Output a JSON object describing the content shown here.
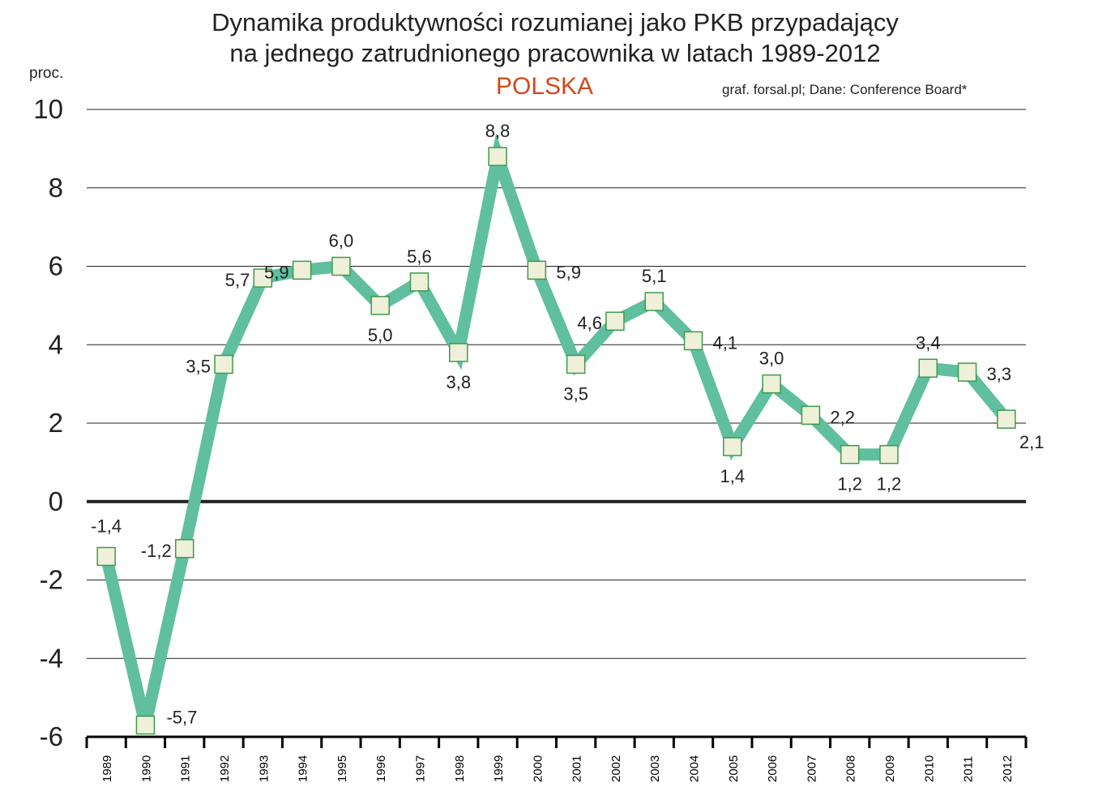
{
  "title_line1": "Dynamika produktywności rozumianej jako PKB przypadający",
  "title_line2": "na jednego zatrudnionego pracownika w latach 1989-2012",
  "subtitle": "POLSKA",
  "source": "graf. forsal.pl;  Dane: Conference Board*",
  "colors": {
    "line": "#5fbf9f",
    "marker_fill": "#eef0da",
    "marker_stroke": "#3f9a4a",
    "subtitle": "#d0491a",
    "grid": "#222222"
  },
  "chart_data": {
    "type": "line",
    "title": "Dynamika produktywności rozumianej jako PKB przypadający na jednego zatrudnionego pracownika w latach 1989-2012",
    "subtitle": "POLSKA",
    "ylabel": "proc.",
    "xlabel": "",
    "ylim": [
      -6,
      10
    ],
    "yticks": [
      10,
      8,
      6,
      4,
      2,
      0,
      -2,
      -4,
      -6
    ],
    "grid": true,
    "categories": [
      "1989",
      "1990",
      "1991",
      "1992",
      "1993",
      "1994",
      "1995",
      "1996",
      "1997",
      "1998",
      "1999",
      "2000",
      "2001",
      "2002",
      "2003",
      "2004",
      "2005",
      "2006",
      "2007",
      "2008",
      "2009",
      "2010",
      "2011",
      "2012"
    ],
    "values": [
      -1.4,
      -5.7,
      -1.2,
      3.5,
      5.7,
      5.9,
      6.0,
      5.0,
      5.6,
      3.8,
      8.8,
      5.9,
      3.5,
      4.6,
      5.1,
      4.1,
      1.4,
      3.0,
      2.2,
      1.2,
      1.2,
      3.4,
      3.3,
      2.1
    ],
    "data_labels": [
      "-1,4",
      "-5,7",
      "-1,2",
      "3,5",
      "5,7",
      "5,9",
      "6,0",
      "5,0",
      "5,6",
      "3,8",
      "8,8",
      "5,9",
      "3,5",
      "4,6",
      "5,1",
      "4,1",
      "1,4",
      "3,0",
      "2,2",
      "1,2",
      "1,2",
      "3,4",
      "3,3",
      "2,1"
    ],
    "tick_labels_y": [
      "10",
      "8",
      "6",
      "4",
      "2",
      "0",
      "-2",
      "-4",
      "-6"
    ]
  }
}
